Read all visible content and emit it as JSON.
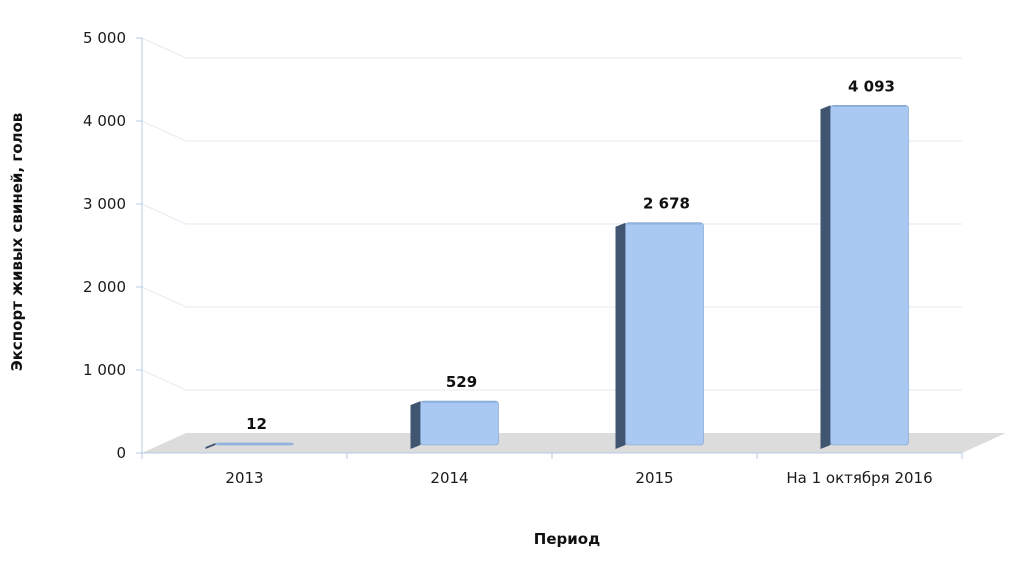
{
  "chart_data": {
    "type": "bar",
    "categories": [
      "2013",
      "2014",
      "2015",
      "На 1 октября 2016"
    ],
    "values": [
      12,
      529,
      2678,
      4093
    ],
    "value_labels": [
      "12",
      "529",
      "2 678",
      "4 093"
    ],
    "xlabel": "Период",
    "ylabel": "Экспорт живых свиней, голов",
    "ylim": [
      0,
      5000
    ],
    "yticks": [
      0,
      1000,
      2000,
      3000,
      4000,
      5000
    ],
    "ytick_labels": [
      "0",
      "1 000",
      "2 000",
      "3 000",
      "4 000",
      "5 000"
    ],
    "grid": true,
    "legend": "none",
    "colors": {
      "bar_front": "#a9c8f2",
      "bar_side": "#3f5570",
      "bar_top": "#8fb2e0",
      "floor": "#dcdcdc",
      "grid": "#e6ebf2",
      "axis": "#b8cbe6"
    }
  }
}
